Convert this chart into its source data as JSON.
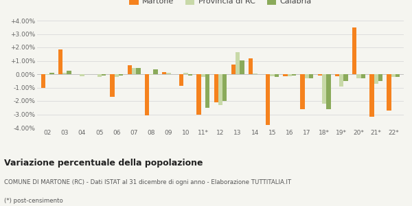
{
  "categories": [
    "02",
    "03",
    "04",
    "05",
    "06",
    "07",
    "08",
    "09",
    "10",
    "11*",
    "12",
    "13",
    "14",
    "15",
    "16",
    "17",
    "18*",
    "19*",
    "20*",
    "21*",
    "22*"
  ],
  "martone": [
    -1.0,
    1.85,
    0.0,
    0.0,
    -1.7,
    0.65,
    -3.1,
    0.15,
    -0.85,
    -3.05,
    -2.1,
    0.7,
    1.2,
    -3.8,
    -0.15,
    -2.6,
    -0.1,
    -0.15,
    3.5,
    -3.2,
    -2.7
  ],
  "provincia": [
    -0.05,
    0.1,
    -0.15,
    -0.2,
    -0.2,
    0.45,
    -0.05,
    0.1,
    0.1,
    -0.2,
    -2.3,
    1.65,
    0.05,
    -0.15,
    -0.15,
    -0.3,
    -2.2,
    -0.9,
    -0.3,
    -0.7,
    -0.2
  ],
  "calabria": [
    0.1,
    0.25,
    0.0,
    -0.1,
    -0.1,
    0.45,
    0.35,
    0.0,
    -0.1,
    -2.5,
    -2.0,
    1.05,
    0.0,
    -0.2,
    -0.1,
    -0.3,
    -2.6,
    -0.5,
    -0.3,
    -0.5,
    -0.2
  ],
  "martone_color": "#f5821e",
  "provincia_color": "#c8d9a8",
  "calabria_color": "#8aaa5a",
  "bg_color": "#f5f5f0",
  "grid_color": "#dddddd",
  "title": "Variazione percentuale della popolazione",
  "subtitle": "COMUNE DI MARTONE (RC) - Dati ISTAT al 31 dicembre di ogni anno - Elaborazione TUTTITALIA.IT",
  "footnote": "(*) post-censimento",
  "ylim": [
    -4.0,
    4.0
  ],
  "yticks": [
    -4.0,
    -3.0,
    -2.0,
    -1.0,
    0.0,
    1.0,
    2.0,
    3.0,
    4.0
  ]
}
